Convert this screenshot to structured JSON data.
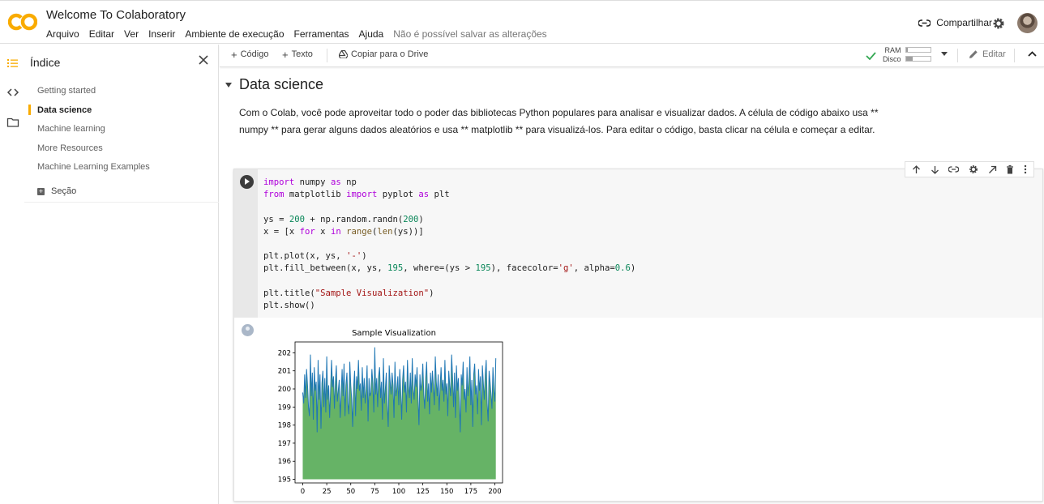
{
  "header": {
    "title": "Welcome To Colaboratory",
    "menu": [
      "Arquivo",
      "Editar",
      "Ver",
      "Inserir",
      "Ambiente de execução",
      "Ferramentas",
      "Ajuda"
    ],
    "save_status": "Não é possível salvar as alterações",
    "share_label": "Compartilhar",
    "logo_text": "CO",
    "brand_color": "#f9ab00"
  },
  "sidebar": {
    "title": "Índice",
    "items": [
      {
        "label": "Getting started",
        "active": false
      },
      {
        "label": "Data science",
        "active": true
      },
      {
        "label": "Machine learning",
        "active": false
      },
      {
        "label": "More Resources",
        "active": false
      },
      {
        "label": "Machine Learning Examples",
        "active": false
      }
    ],
    "add_section_label": "Seção"
  },
  "toolbar": {
    "code_label": "Código",
    "text_label": "Texto",
    "drive_label": "Copiar para o Drive",
    "ram_label": "RAM",
    "disk_label": "Disco",
    "ram_usage": 0.08,
    "disk_usage": 0.25,
    "edit_label": "Editar"
  },
  "notebook": {
    "section_title": "Data science",
    "paragraph": "Com o Colab, você pode aproveitar todo o poder das bibliotecas Python populares para analisar e visualizar dados. A célula de código abaixo usa ** numpy ** para gerar alguns dados aleatórios e usa ** matplotlib ** para visualizá-los. Para editar o código, basta clicar na célula e começar a editar.",
    "code_lines": [
      "import numpy as np",
      "from matplotlib import pyplot as plt",
      "",
      "ys = 200 + np.random.randn(200)",
      "x = [x for x in range(len(ys))]",
      "",
      "plt.plot(x, ys, '-')",
      "plt.fill_between(x, ys, 195, where=(ys > 195), facecolor='g', alpha=0.6)",
      "",
      "plt.title(\"Sample Visualization\")",
      "plt.show()"
    ]
  },
  "chart_data": {
    "type": "line",
    "title": "Sample Visualization",
    "xlabel": "",
    "ylabel": "",
    "xlim": [
      -8,
      208
    ],
    "ylim": [
      194.8,
      202.6
    ],
    "x_ticks": [
      0,
      25,
      50,
      75,
      100,
      125,
      150,
      175,
      200
    ],
    "y_ticks": [
      195,
      196,
      197,
      198,
      199,
      200,
      201,
      202
    ],
    "fill_baseline": 195,
    "line_color": "#1f77b4",
    "fill_color": "#008000",
    "fill_alpha": 0.6,
    "series": [
      {
        "x_start": 0,
        "values": [
          199.8,
          199.2,
          200.8,
          199.5,
          201.1,
          200.2,
          199.0,
          198.5,
          201.9,
          199.6,
          200.9,
          198.3,
          201.2,
          199.9,
          200.4,
          197.6,
          201.6,
          199.4,
          200.8,
          197.8,
          200.3,
          201.0,
          199.0,
          200.6,
          198.7,
          201.8,
          199.4,
          200.2,
          198.4,
          199.9,
          201.6,
          200.1,
          200.7,
          198.9,
          200.4,
          201.3,
          199.3,
          199.9,
          200.5,
          198.4,
          199.7,
          201.1,
          199.6,
          201.4,
          198.5,
          200.2,
          200.9,
          199.2,
          198.6,
          201.5,
          200.2,
          199.4,
          197.9,
          200.1,
          201.0,
          198.5,
          200.7,
          200.0,
          201.6,
          199.9,
          200.3,
          198.8,
          201.2,
          199.5,
          200.6,
          199.2,
          200.0,
          201.3,
          198.2,
          200.6,
          199.6,
          199.8,
          201.1,
          200.3,
          198.7,
          202.3,
          199.7,
          200.6,
          199.0,
          200.7,
          201.2,
          199.5,
          200.4,
          198.3,
          201.7,
          199.2,
          200.0,
          200.9,
          199.1,
          197.9,
          201.3,
          200.4,
          199.7,
          200.9,
          200.2,
          198.4,
          201.5,
          199.6,
          200.0,
          200.7,
          199.1,
          201.1,
          199.9,
          198.3,
          200.5,
          201.3,
          199.8,
          200.4,
          198.7,
          201.6,
          200.2,
          199.5,
          200.9,
          199.2,
          201.7,
          200.0,
          199.4,
          200.8,
          200.1,
          201.2,
          199.5,
          198.0,
          200.8,
          199.9,
          200.3,
          201.4,
          199.7,
          198.9,
          200.6,
          201.5,
          199.3,
          200.3,
          198.6,
          200.9,
          199.8,
          201.0,
          200.2,
          199.1,
          201.8,
          200.4,
          199.6,
          200.8,
          198.8,
          200.1,
          201.2,
          199.9,
          200.5,
          199.3,
          201.6,
          199.7,
          200.3,
          198.5,
          201.0,
          200.2,
          199.6,
          201.9,
          200.6,
          199.0,
          200.9,
          198.4,
          201.3,
          199.9,
          200.6,
          199.3,
          197.6,
          200.8,
          200.2,
          201.5,
          199.4,
          200.0,
          198.7,
          201.2,
          199.6,
          200.4,
          201.8,
          199.1,
          200.5,
          197.9,
          200.8,
          201.4,
          199.7,
          200.2,
          198.6,
          201.1,
          199.9,
          200.7,
          198.0,
          201.3,
          200.3,
          199.4,
          200.8,
          201.6,
          199.2,
          198.2,
          201.0,
          200.4,
          199.7,
          198.9,
          201.2,
          200.0,
          199.3,
          201.7
        ]
      }
    ]
  }
}
